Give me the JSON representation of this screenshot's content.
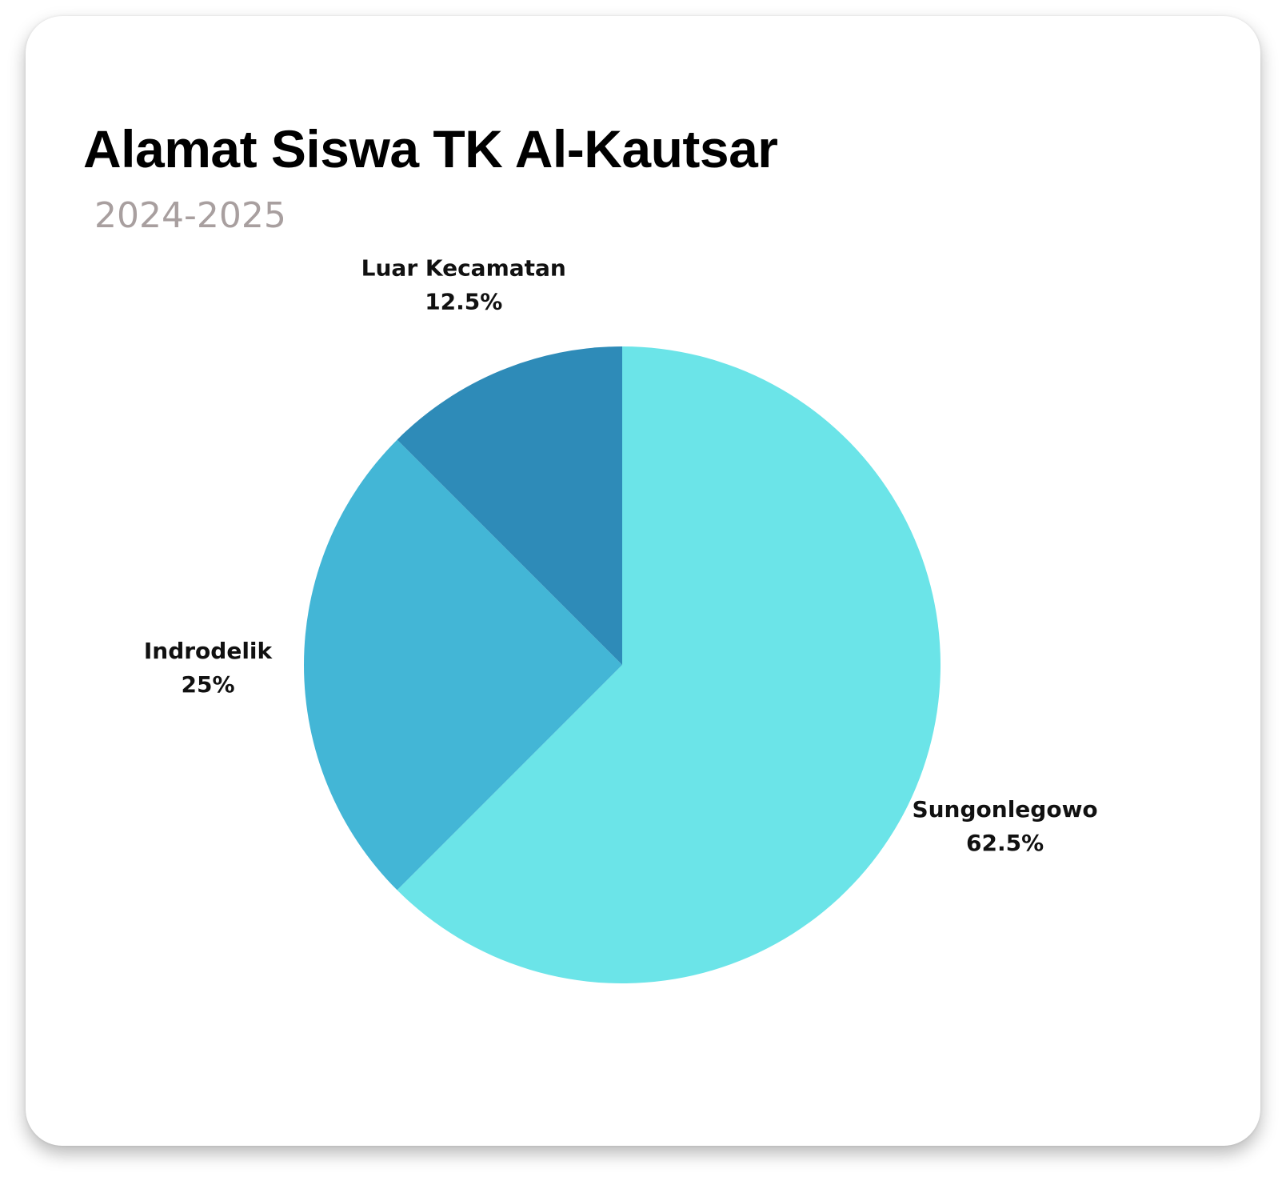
{
  "chart_data": {
    "type": "pie",
    "title": "Alamat Siswa TK Al-Kautsar",
    "subtitle": "2024-2025",
    "slices": [
      {
        "label": "Sungonlegowo",
        "value": 62.5,
        "value_label": "62.5%",
        "color": "#6be4e8"
      },
      {
        "label": "Indrodelik",
        "value": 25,
        "value_label": "25%",
        "color": "#43b6d6"
      },
      {
        "label": "Luar Kecamatan",
        "value": 12.5,
        "value_label": "12.5%",
        "color": "#2e8bb8"
      }
    ],
    "start_angle": "12 o'clock",
    "direction": "clockwise",
    "legend": "none"
  }
}
